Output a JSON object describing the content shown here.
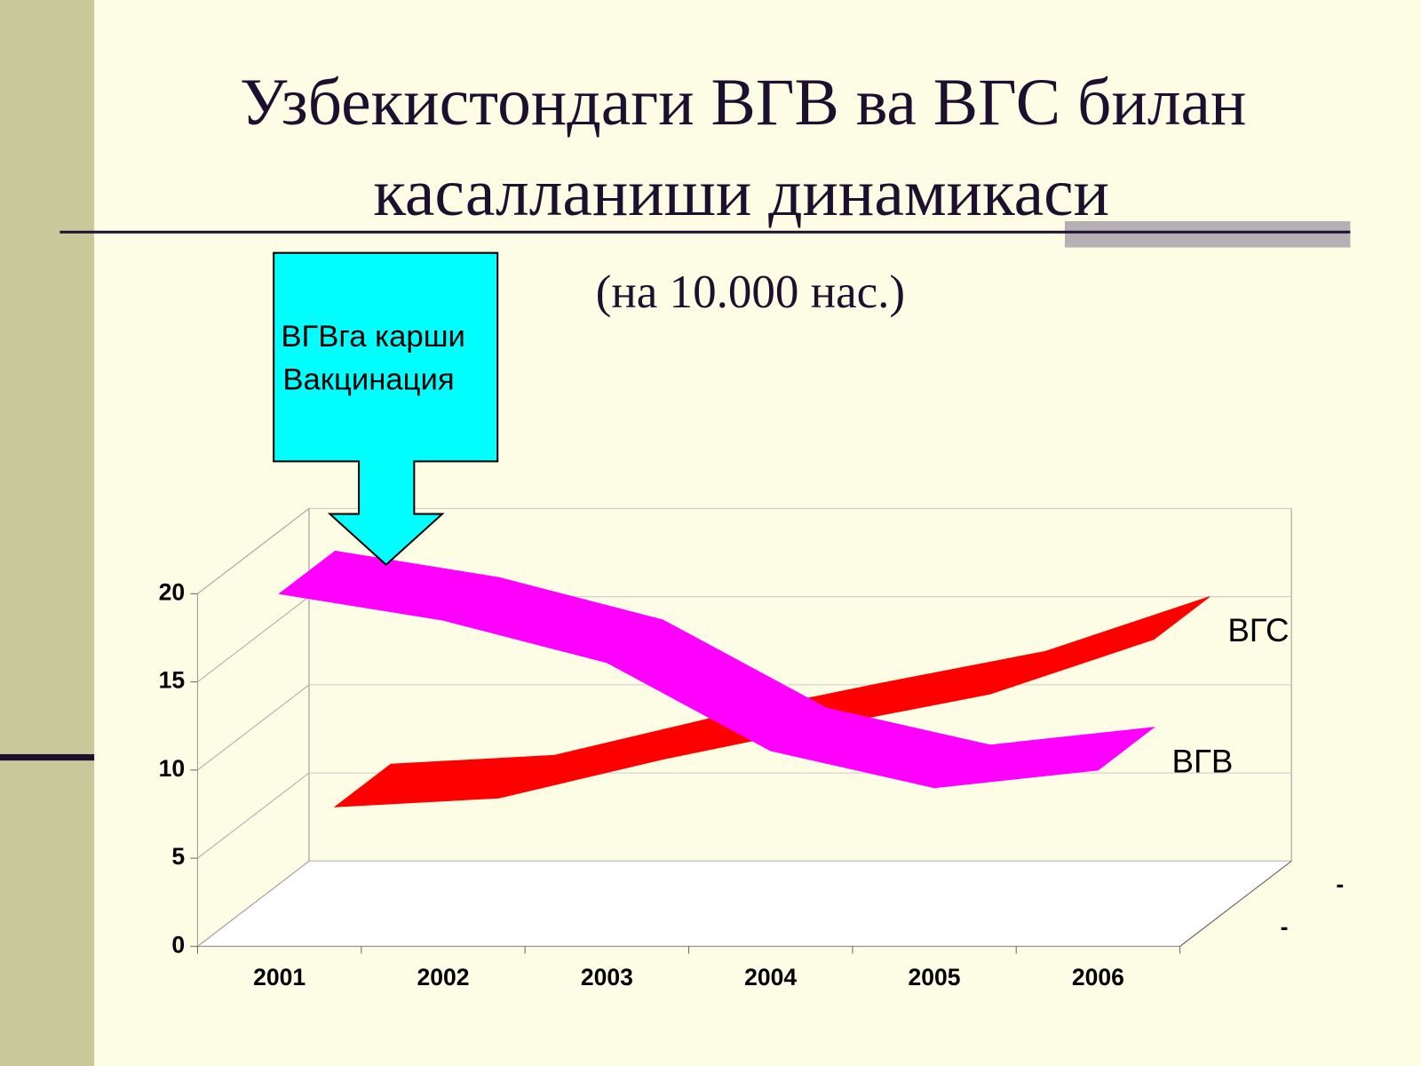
{
  "chart_data": {
    "type": "line",
    "title": [
      "Узбекистондаги ВГВ ва ВГС билан",
      "касалланиши динамикаси"
    ],
    "subtitle": "(на 10.000 нас.)",
    "annotation": [
      "ВГВга карши",
      "Вакцинация"
    ],
    "categories": [
      "2001",
      "2002",
      "2003",
      "2004",
      "2005",
      "2006"
    ],
    "series": [
      {
        "name": "ВГС",
        "color": "#ff0000",
        "values": [
          5.5,
          6.0,
          8.2,
          10.1,
          11.9,
          15.0
        ]
      },
      {
        "name": "ВГВ",
        "color": "#ff00ff",
        "values": [
          20.0,
          18.5,
          16.1,
          11.1,
          9.0,
          10.0
        ]
      }
    ],
    "depth_labels": [
      "-",
      "-"
    ],
    "ylim": [
      0,
      20
    ],
    "yticks": [
      0,
      5,
      10,
      15,
      20
    ],
    "grid": true
  }
}
